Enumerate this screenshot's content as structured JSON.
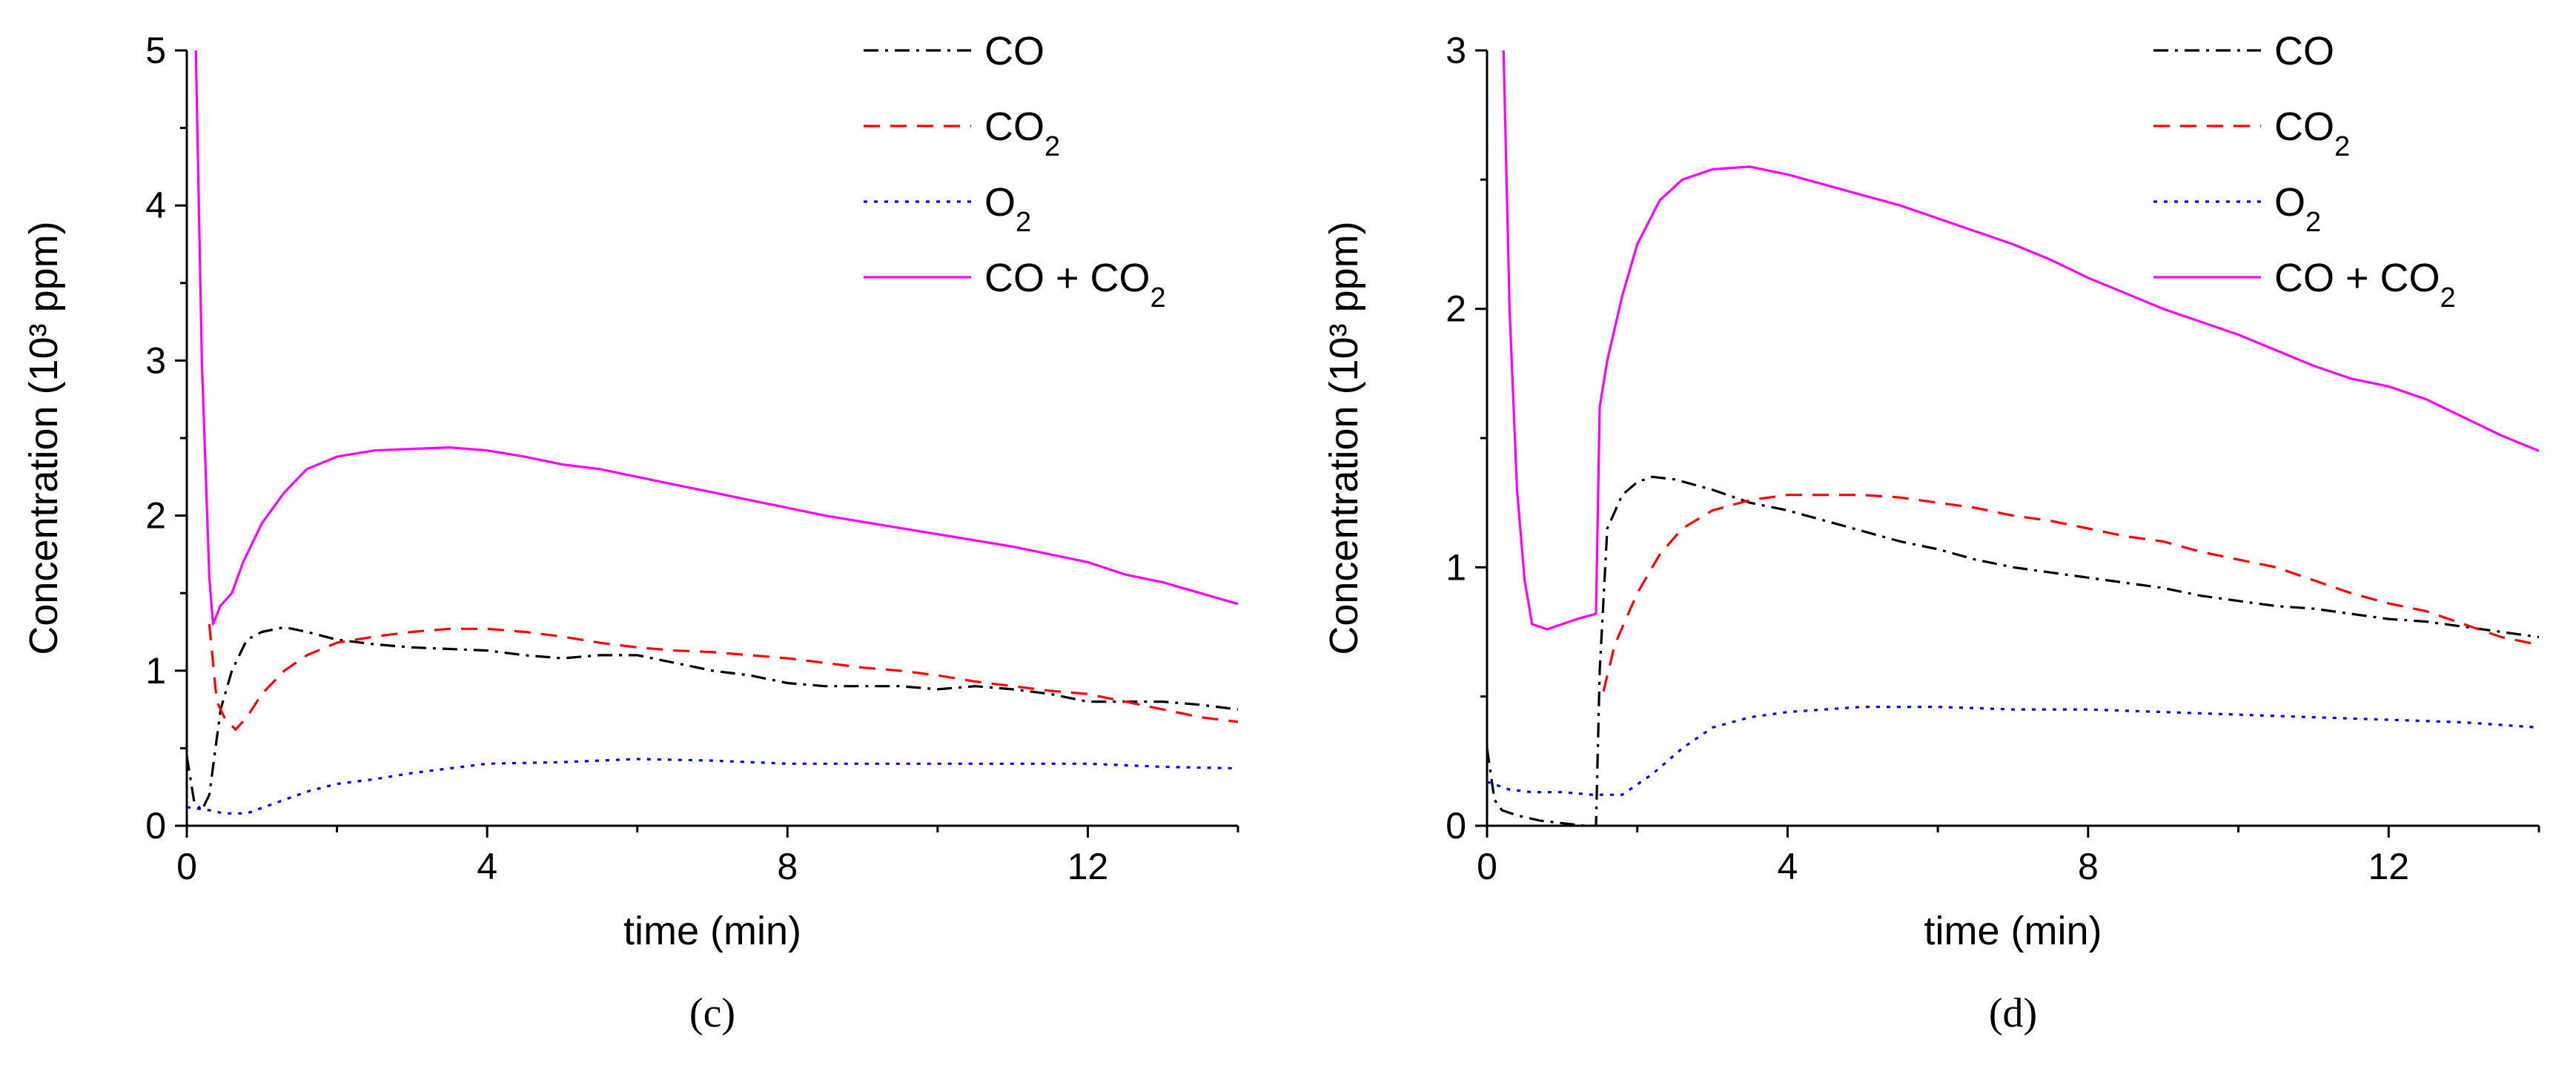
{
  "chart_data": [
    {
      "type": "line",
      "caption": "(c)",
      "xlabel": "time (min)",
      "ylabel": "Concentration (10³ ppm)",
      "xlim": [
        0,
        14
      ],
      "ylim": [
        0,
        5
      ],
      "xticks": [
        0,
        4,
        8,
        12
      ],
      "yticks": [
        0,
        1,
        2,
        3,
        4,
        5
      ],
      "legend_position": "top-right",
      "series": [
        {
          "name": "CO",
          "label_main": "CO",
          "label_sub": "",
          "label_tail": "",
          "color": "#000000",
          "dash": "20,9,4,9",
          "x": [
            0,
            0.1,
            0.2,
            0.3,
            0.45,
            0.6,
            0.8,
            1.0,
            1.3,
            1.6,
            2,
            2.5,
            3,
            3.5,
            4,
            4.5,
            5,
            5.5,
            6,
            6.5,
            7,
            7.5,
            8,
            8.5,
            9,
            9.5,
            10,
            10.5,
            11,
            11.5,
            12,
            12.5,
            13,
            13.5,
            14
          ],
          "y": [
            0.45,
            0.15,
            0.1,
            0.2,
            0.75,
            1.0,
            1.2,
            1.25,
            1.28,
            1.25,
            1.2,
            1.17,
            1.15,
            1.14,
            1.13,
            1.1,
            1.08,
            1.1,
            1.1,
            1.05,
            1.0,
            0.97,
            0.92,
            0.9,
            0.9,
            0.9,
            0.88,
            0.9,
            0.88,
            0.85,
            0.8,
            0.8,
            0.8,
            0.78,
            0.75
          ]
        },
        {
          "name": "CO2",
          "label_main": "CO",
          "label_sub": "2",
          "label_tail": "",
          "color": "#ff0000",
          "dash": "22,14",
          "x": [
            0.3,
            0.4,
            0.5,
            0.65,
            0.8,
            1.0,
            1.3,
            1.6,
            2,
            2.5,
            3,
            3.5,
            4,
            4.5,
            5,
            5.5,
            6,
            6.5,
            7,
            7.5,
            8,
            8.5,
            9,
            9.5,
            10,
            10.5,
            11,
            11.5,
            12,
            12.5,
            13,
            13.5,
            14
          ],
          "y": [
            1.3,
            0.8,
            0.7,
            0.62,
            0.7,
            0.85,
            1.0,
            1.1,
            1.18,
            1.22,
            1.25,
            1.27,
            1.27,
            1.25,
            1.22,
            1.18,
            1.15,
            1.13,
            1.12,
            1.1,
            1.08,
            1.05,
            1.02,
            1.0,
            0.97,
            0.93,
            0.9,
            0.87,
            0.85,
            0.8,
            0.75,
            0.7,
            0.67
          ]
        },
        {
          "name": "O2",
          "label_main": "O",
          "label_sub": "2",
          "label_tail": "",
          "color": "#0000ff",
          "dash": "5,9",
          "x": [
            0,
            0.3,
            0.5,
            0.8,
            1.2,
            1.6,
            2,
            2.5,
            3,
            3.5,
            4,
            5,
            6,
            7,
            8,
            9,
            10,
            11,
            12,
            13,
            14
          ],
          "y": [
            0.12,
            0.1,
            0.08,
            0.08,
            0.15,
            0.22,
            0.27,
            0.3,
            0.34,
            0.37,
            0.4,
            0.41,
            0.43,
            0.42,
            0.4,
            0.4,
            0.4,
            0.4,
            0.4,
            0.38,
            0.37
          ]
        },
        {
          "name": "CO + CO2",
          "label_main": "CO + CO",
          "label_sub": "2",
          "label_tail": "",
          "color": "#ff00ff",
          "dash": "",
          "x": [
            0.12,
            0.2,
            0.3,
            0.35,
            0.45,
            0.6,
            0.75,
            1.0,
            1.3,
            1.6,
            2,
            2.5,
            3,
            3.5,
            4,
            4.5,
            5,
            5.5,
            6,
            6.5,
            7,
            7.5,
            8,
            8.5,
            9,
            9.5,
            10,
            10.5,
            11,
            11.5,
            12,
            12.5,
            13,
            13.5,
            14
          ],
          "y": [
            5.0,
            3.0,
            1.6,
            1.3,
            1.42,
            1.5,
            1.7,
            1.95,
            2.15,
            2.3,
            2.38,
            2.42,
            2.43,
            2.44,
            2.42,
            2.38,
            2.33,
            2.3,
            2.25,
            2.2,
            2.15,
            2.1,
            2.05,
            2.0,
            1.96,
            1.92,
            1.88,
            1.84,
            1.8,
            1.75,
            1.7,
            1.62,
            1.57,
            1.5,
            1.43
          ]
        }
      ]
    },
    {
      "type": "line",
      "caption": "(d)",
      "xlabel": "time (min)",
      "ylabel": "Concentration (10³ ppm)",
      "xlim": [
        0,
        14
      ],
      "ylim": [
        0,
        3
      ],
      "xticks": [
        0,
        4,
        8,
        12
      ],
      "yticks": [
        0,
        1,
        2,
        3
      ],
      "legend_position": "top-right",
      "series": [
        {
          "name": "CO",
          "label_main": "CO",
          "label_sub": "",
          "label_tail": "",
          "color": "#000000",
          "dash": "20,9,4,9",
          "x": [
            0,
            0.1,
            0.2,
            0.4,
            0.7,
            1.0,
            1.3,
            1.45,
            1.5,
            1.6,
            1.8,
            2.0,
            2.2,
            2.5,
            3,
            3.5,
            4,
            4.5,
            5,
            5.5,
            6,
            6.5,
            7,
            7.5,
            8,
            8.5,
            9,
            9.5,
            10,
            10.5,
            11,
            11.5,
            12,
            12.5,
            13,
            13.5,
            14
          ],
          "y": [
            0.3,
            0.1,
            0.06,
            0.04,
            0.02,
            0.01,
            0.0,
            0.0,
            0.6,
            1.15,
            1.28,
            1.33,
            1.35,
            1.34,
            1.3,
            1.25,
            1.22,
            1.18,
            1.14,
            1.1,
            1.07,
            1.03,
            1.0,
            0.98,
            0.96,
            0.94,
            0.92,
            0.89,
            0.87,
            0.85,
            0.84,
            0.82,
            0.8,
            0.79,
            0.77,
            0.75,
            0.73
          ]
        },
        {
          "name": "CO2",
          "label_main": "CO",
          "label_sub": "2",
          "label_tail": "",
          "color": "#ff0000",
          "dash": "22,14",
          "x": [
            1.55,
            1.7,
            2.0,
            2.3,
            2.6,
            3.0,
            3.5,
            4,
            4.5,
            5,
            5.5,
            6,
            6.5,
            7,
            7.5,
            8,
            8.5,
            9,
            9.5,
            10,
            10.5,
            11,
            11.5,
            12,
            12.5,
            13,
            13.5,
            14
          ],
          "y": [
            0.52,
            0.7,
            0.9,
            1.05,
            1.15,
            1.22,
            1.26,
            1.28,
            1.28,
            1.28,
            1.27,
            1.25,
            1.23,
            1.2,
            1.18,
            1.15,
            1.12,
            1.1,
            1.06,
            1.03,
            1.0,
            0.95,
            0.9,
            0.86,
            0.83,
            0.78,
            0.73,
            0.7
          ]
        },
        {
          "name": "O2",
          "label_main": "O",
          "label_sub": "2",
          "label_tail": "",
          "color": "#0000ff",
          "dash": "5,9",
          "x": [
            0,
            0.3,
            0.6,
            1.0,
            1.4,
            1.8,
            2.2,
            2.6,
            3.0,
            3.5,
            4,
            4.5,
            5,
            6,
            7,
            8,
            9,
            10,
            11,
            12,
            13,
            14
          ],
          "y": [
            0.17,
            0.14,
            0.13,
            0.13,
            0.12,
            0.12,
            0.2,
            0.3,
            0.38,
            0.42,
            0.44,
            0.45,
            0.46,
            0.46,
            0.45,
            0.45,
            0.44,
            0.43,
            0.42,
            0.41,
            0.4,
            0.38
          ]
        },
        {
          "name": "CO + CO2",
          "label_main": "CO + CO",
          "label_sub": "2",
          "label_tail": "",
          "color": "#ff00ff",
          "dash": "",
          "x": [
            0.22,
            0.3,
            0.4,
            0.5,
            0.6,
            0.8,
            1.0,
            1.2,
            1.45,
            1.5,
            1.6,
            1.8,
            2.0,
            2.3,
            2.6,
            3.0,
            3.5,
            4,
            4.5,
            5,
            5.5,
            6,
            6.5,
            7,
            7.5,
            8,
            8.5,
            9,
            9.5,
            10,
            10.5,
            11,
            11.5,
            12,
            12.5,
            13,
            13.5,
            14
          ],
          "y": [
            3.0,
            2.0,
            1.3,
            0.95,
            0.78,
            0.76,
            0.78,
            0.8,
            0.82,
            1.62,
            1.8,
            2.05,
            2.25,
            2.42,
            2.5,
            2.54,
            2.55,
            2.52,
            2.48,
            2.44,
            2.4,
            2.35,
            2.3,
            2.25,
            2.19,
            2.12,
            2.06,
            2.0,
            1.95,
            1.9,
            1.84,
            1.78,
            1.73,
            1.7,
            1.65,
            1.58,
            1.51,
            1.45
          ]
        }
      ]
    }
  ]
}
